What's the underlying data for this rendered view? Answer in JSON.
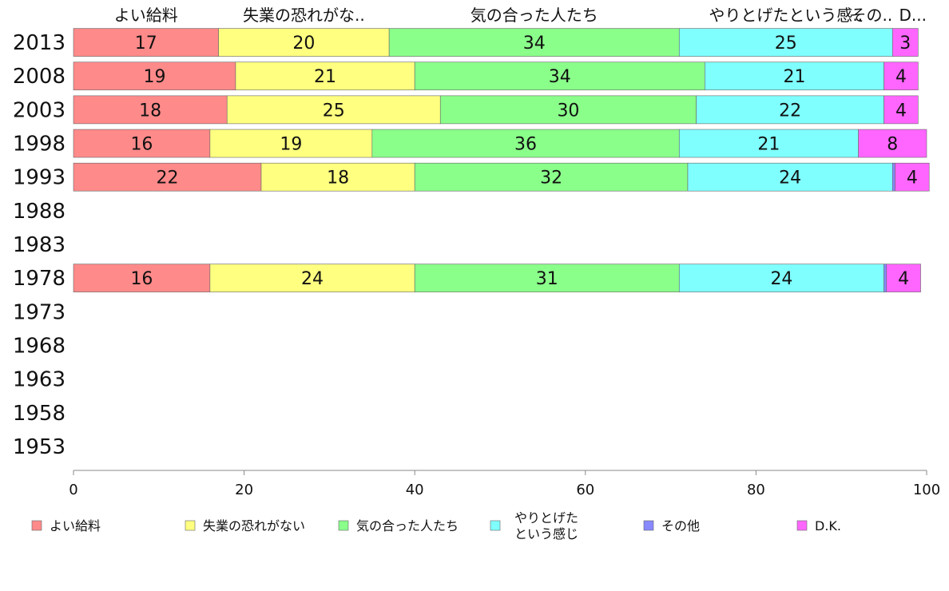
{
  "chart_data": {
    "type": "bar",
    "orientation": "horizontal",
    "stacked": true,
    "categories": [
      "2013",
      "2008",
      "2003",
      "1998",
      "1993",
      "1988",
      "1983",
      "1978",
      "1973",
      "1968",
      "1963",
      "1958",
      "1953"
    ],
    "column_headers": [
      "よい給料",
      "失業の恐れがな..",
      "気の合った人たち",
      "やりとげたという感..",
      "その..",
      "D..."
    ],
    "series": [
      {
        "name": "よい給料",
        "color": "#ff8a8a",
        "values": [
          17,
          19,
          18,
          16,
          22,
          null,
          null,
          16,
          null,
          null,
          null,
          null,
          null
        ]
      },
      {
        "name": "失業の恐れがない",
        "color": "#ffff80",
        "values": [
          20,
          21,
          25,
          19,
          18,
          null,
          null,
          24,
          null,
          null,
          null,
          null,
          null
        ]
      },
      {
        "name": "気の合った人たち",
        "color": "#8aff8a",
        "values": [
          34,
          34,
          30,
          36,
          32,
          null,
          null,
          31,
          null,
          null,
          null,
          null,
          null
        ]
      },
      {
        "name": "やりとげた\nという感じ",
        "color": "#80ffff",
        "values": [
          25,
          21,
          22,
          21,
          24,
          null,
          null,
          24,
          null,
          null,
          null,
          null,
          null
        ]
      },
      {
        "name": "その他",
        "color": "#8888ff",
        "values": [
          0,
          0,
          0,
          0,
          0.3,
          null,
          null,
          0.3,
          null,
          null,
          null,
          null,
          null
        ]
      },
      {
        "name": "D.K.",
        "color": "#ff66ff",
        "values": [
          3,
          4,
          4,
          8,
          4,
          null,
          null,
          4,
          null,
          null,
          null,
          null,
          null
        ]
      }
    ],
    "xlim": [
      0,
      100
    ],
    "x_ticks": [
      0,
      20,
      40,
      60,
      80,
      100
    ],
    "legend_position": "bottom",
    "grid": false
  }
}
